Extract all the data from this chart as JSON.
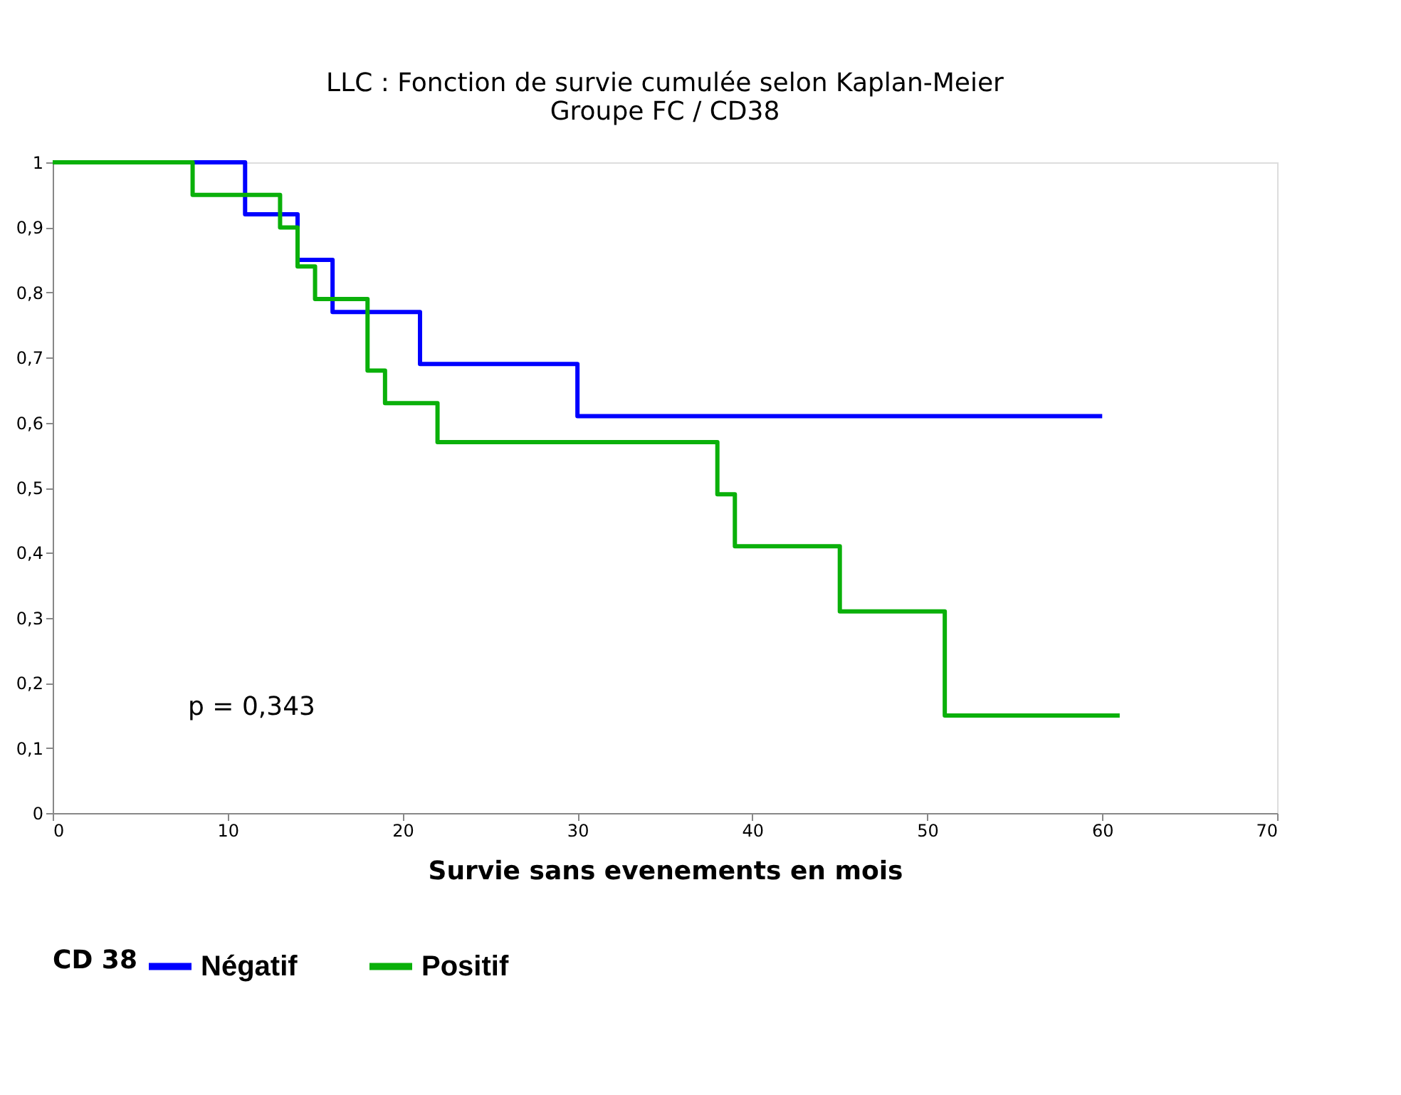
{
  "chart_data": {
    "type": "step",
    "title": [
      "LLC : Fonction de survie cumulée selon Kaplan-Meier",
      "Groupe FC / CD38"
    ],
    "xlabel": "Survie sans  evenements en mois",
    "legend_title": "CD 38",
    "legend": "bottom",
    "series": [
      {
        "name": "Négatif",
        "color": "#0000ff",
        "x": [
          0,
          11,
          14,
          16,
          21,
          30,
          60
        ],
        "values": [
          1,
          0.92,
          0.85,
          0.77,
          0.69,
          0.61,
          0.61
        ]
      },
      {
        "name": "Positif",
        "color": "#0ab00a",
        "x": [
          0,
          8,
          13,
          14,
          15,
          18,
          19,
          22,
          38,
          39,
          45,
          51,
          61
        ],
        "values": [
          1,
          0.95,
          0.9,
          0.84,
          0.79,
          0.68,
          0.63,
          0.57,
          0.49,
          0.41,
          0.31,
          0.15,
          0.15
        ]
      }
    ],
    "xlim": [
      0,
      70
    ],
    "xticks": [
      0,
      10,
      20,
      30,
      40,
      50,
      60,
      70
    ],
    "ylim": [
      0,
      1
    ],
    "yticks": [
      0,
      {
        "value": 0.1,
        "label": "0,1"
      },
      {
        "value": 0.2,
        "label": "0,2"
      },
      {
        "value": 0.3,
        "label": "0,3"
      },
      {
        "value": 0.4,
        "label": "0,4"
      },
      {
        "value": 0.5,
        "label": "0,5"
      },
      {
        "value": 0.6,
        "label": "0,6"
      },
      {
        "value": 0.7,
        "label": "0,7"
      },
      {
        "value": 0.8,
        "label": "0,8"
      },
      {
        "value": 0.9,
        "label": "0,9"
      },
      1
    ],
    "grid": false,
    "line_style": "solid",
    "marker": "none",
    "annotations": [
      "p = 0,343"
    ]
  }
}
